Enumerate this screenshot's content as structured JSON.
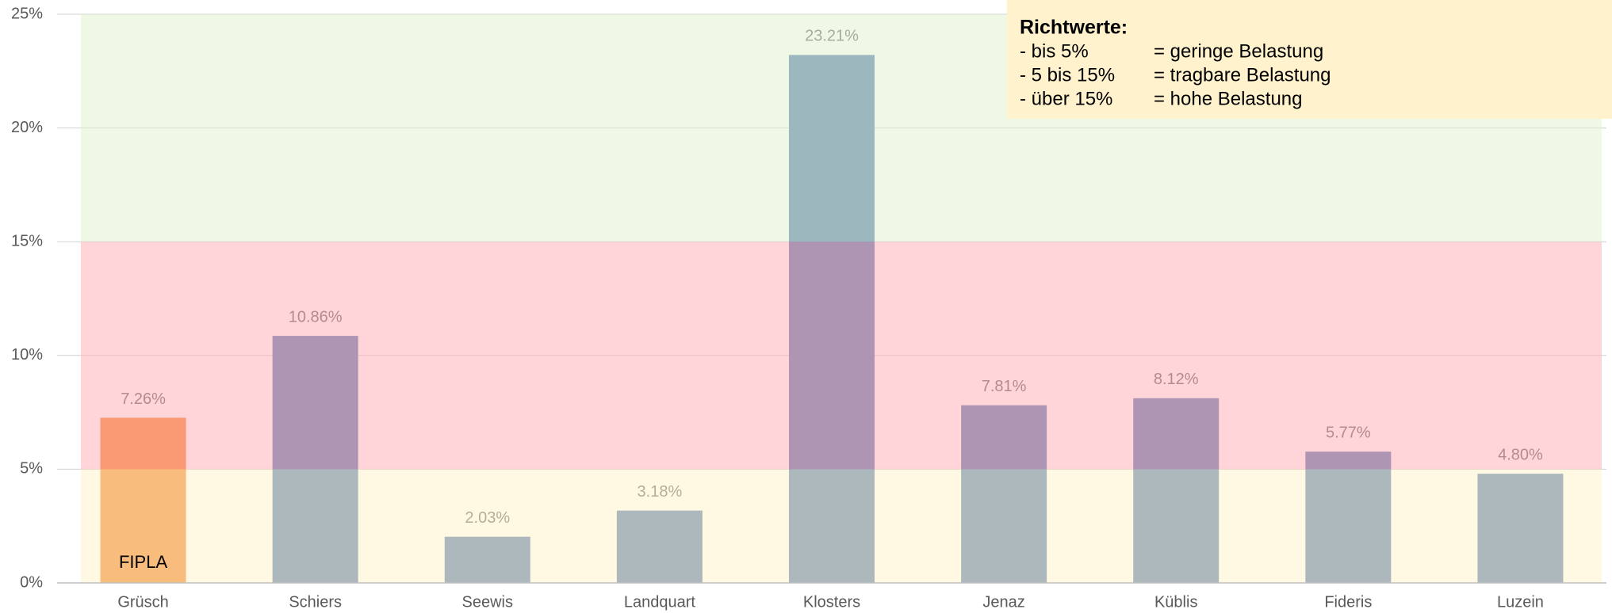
{
  "chart_data": {
    "type": "bar",
    "categories": [
      "Grüsch",
      "Schiers",
      "Seewis",
      "Landquart",
      "Klosters",
      "Jenaz",
      "Küblis",
      "Fideris",
      "Luzein"
    ],
    "values": [
      7.26,
      10.86,
      2.03,
      3.18,
      23.21,
      7.81,
      8.12,
      5.77,
      4.8
    ],
    "value_labels": [
      "7.26%",
      "10.86%",
      "2.03%",
      "3.18%",
      "23.21%",
      "7.81%",
      "8.12%",
      "5.77%",
      "4.80%"
    ],
    "colors": [
      "#f07a1c",
      "#4a72a8",
      "#4a72a8",
      "#4a72a8",
      "#4a72a8",
      "#4a72a8",
      "#4a72a8",
      "#4a72a8",
      "#4a72a8"
    ],
    "ylim": [
      0,
      25
    ],
    "yticks": [
      {
        "value": 0,
        "label": "0%"
      },
      {
        "value": 5,
        "label": "5%"
      },
      {
        "value": 10,
        "label": "10%"
      },
      {
        "value": 15,
        "label": "15%"
      },
      {
        "value": 20,
        "label": "20%"
      },
      {
        "value": 25,
        "label": "25%"
      }
    ],
    "grid": true,
    "bands": [
      {
        "from": 0,
        "to": 5,
        "color": "#fff2cc"
      },
      {
        "from": 5,
        "to": 15,
        "color": "#ffb3bc"
      },
      {
        "from": 15,
        "to": 25,
        "color": "#e2f0d0"
      }
    ],
    "bar_annotation": {
      "index": 0,
      "text": "FIPLA"
    },
    "legend_box": {
      "title": "Richtwerte:",
      "rows": [
        [
          "- bis 5%",
          "= geringe Belastung"
        ],
        [
          "- 5 bis 15%",
          "= tragbare Belastung"
        ],
        [
          "- über 15%",
          "= hohe Belastung"
        ]
      ]
    }
  }
}
